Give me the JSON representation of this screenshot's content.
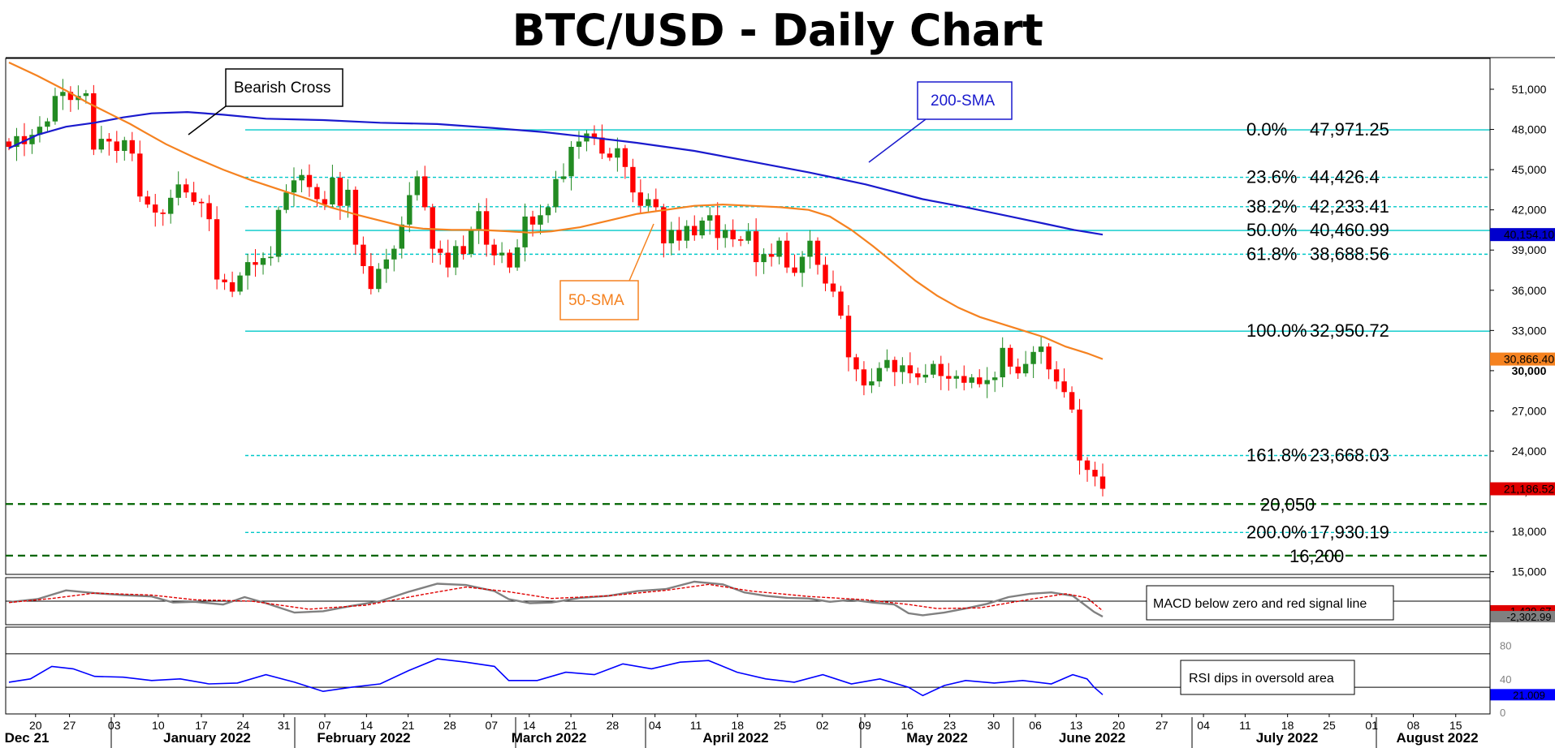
{
  "title": "BTC/USD - Daily Chart",
  "colors": {
    "bull": "#228b22",
    "bear": "#ff0000",
    "sma200": "#1a1acd",
    "sma50": "#f58220",
    "fib": "#00c8c8",
    "support": "#006400",
    "rsi": "#0000ff",
    "macd": "#808080",
    "signal": "#e00000"
  },
  "chart_data": {
    "type": "line",
    "price_axis": {
      "ylim": [
        14800,
        53300
      ],
      "ticks": [
        "51,000",
        "48,000",
        "45,000",
        "42,000",
        "39,000",
        "36,000",
        "33,000",
        "30,000",
        "27,000",
        "24,000",
        "21,000",
        "18,000",
        "15,000"
      ]
    },
    "x_ticks": [
      "20",
      "27",
      "03",
      "10",
      "17",
      "24",
      "31",
      "07",
      "14",
      "21",
      "28",
      "07",
      "14",
      "21",
      "28",
      "04",
      "11",
      "18",
      "25",
      "02",
      "09",
      "16",
      "23",
      "30",
      "06",
      "13",
      "20",
      "27",
      "04",
      "11",
      "18",
      "25",
      "01",
      "08",
      "15"
    ],
    "months": [
      "Dec 21",
      "January 2022",
      "February 2022",
      "March 2022",
      "April 2022",
      "May 2022",
      "June 2022",
      "July 2022",
      "August 2022"
    ],
    "candles_close": [
      46700,
      47500,
      46900,
      47600,
      48200,
      48600,
      50500,
      50800,
      50200,
      50500,
      50700,
      46500,
      47300,
      47100,
      46400,
      47200,
      46200,
      43000,
      42400,
      41800,
      41700,
      42900,
      43900,
      43300,
      42600,
      42500,
      41300,
      36800,
      36600,
      35900,
      37100,
      38100,
      37900,
      38400,
      38500,
      42000,
      43300,
      44200,
      44600,
      43700,
      42800,
      42400,
      44400,
      42300,
      43500,
      39400,
      37800,
      36100,
      37600,
      38300,
      39100,
      40900,
      43100,
      44500,
      42200,
      39100,
      38800,
      37700,
      39300,
      38700,
      40500,
      41900,
      39400,
      38600,
      38800,
      37700,
      39200,
      41500,
      40900,
      41600,
      42200,
      44300,
      44500,
      46700,
      47100,
      47700,
      47400,
      46200,
      45900,
      46600,
      45200,
      43300,
      42300,
      42800,
      42200,
      39500,
      40500,
      39700,
      40800,
      40100,
      41200,
      41600,
      39900,
      40500,
      39800,
      39700,
      40400,
      38100,
      38700,
      38500,
      39700,
      37700,
      37300,
      38500,
      39700,
      37900,
      36500,
      35900,
      34100,
      31000,
      30100,
      28900,
      29200,
      30200,
      30800,
      29900,
      30400,
      29800,
      29500,
      29700,
      30500,
      29600,
      29400,
      29600,
      29100,
      29500,
      29000,
      29300,
      29500,
      31700,
      30300,
      29800,
      30500,
      31400,
      31800,
      30100,
      29200,
      28400,
      27100,
      23300,
      22600,
      22100,
      21186.52
    ],
    "sma200": [
      [
        0,
        46600
      ],
      [
        20,
        47600
      ],
      [
        40,
        48200
      ],
      [
        60,
        48500
      ],
      [
        80,
        48900
      ],
      [
        100,
        49200
      ],
      [
        125,
        49300
      ],
      [
        150,
        49100
      ],
      [
        180,
        48800
      ],
      [
        220,
        48700
      ],
      [
        260,
        48500
      ],
      [
        300,
        48400
      ],
      [
        340,
        48100
      ],
      [
        375,
        47800
      ],
      [
        400,
        47500
      ],
      [
        440,
        47000
      ],
      [
        480,
        46400
      ],
      [
        520,
        45600
      ],
      [
        560,
        44800
      ],
      [
        600,
        43900
      ],
      [
        640,
        42800
      ],
      [
        670,
        42200
      ],
      [
        697,
        41600
      ],
      [
        726,
        40950
      ],
      [
        746,
        40500
      ],
      [
        766,
        40154.1
      ]
    ],
    "sma50": [
      [
        0,
        53000
      ],
      [
        20,
        52000
      ],
      [
        40,
        50900
      ],
      [
        55,
        50000
      ],
      [
        70,
        49200
      ],
      [
        85,
        48400
      ],
      [
        95,
        47800
      ],
      [
        110,
        46900
      ],
      [
        130,
        45900
      ],
      [
        150,
        45000
      ],
      [
        170,
        44200
      ],
      [
        190,
        43500
      ],
      [
        210,
        42800
      ],
      [
        225,
        42200
      ],
      [
        245,
        41600
      ],
      [
        260,
        41200
      ],
      [
        275,
        40800
      ],
      [
        290,
        40600
      ],
      [
        310,
        40500
      ],
      [
        330,
        40500
      ],
      [
        350,
        40400
      ],
      [
        365,
        40300
      ],
      [
        380,
        40400
      ],
      [
        400,
        40700
      ],
      [
        420,
        41200
      ],
      [
        440,
        41700
      ],
      [
        460,
        42000
      ],
      [
        480,
        42300
      ],
      [
        500,
        42400
      ],
      [
        520,
        42300
      ],
      [
        540,
        42200
      ],
      [
        560,
        42000
      ],
      [
        575,
        41500
      ],
      [
        590,
        40500
      ],
      [
        605,
        39300
      ],
      [
        620,
        38000
      ],
      [
        635,
        36700
      ],
      [
        650,
        35600
      ],
      [
        665,
        34700
      ],
      [
        680,
        34000
      ],
      [
        695,
        33500
      ],
      [
        710,
        33000
      ],
      [
        725,
        32500
      ],
      [
        740,
        31800
      ],
      [
        755,
        31300
      ],
      [
        766,
        30866.4
      ]
    ],
    "fib_levels": [
      {
        "pct": "0.0%",
        "value": "47,971.25",
        "price": 47971.25,
        "style": "solid"
      },
      {
        "pct": "23.6%",
        "value": "44,426.4",
        "price": 44426.4,
        "style": "dashed"
      },
      {
        "pct": "38.2%",
        "value": "42,233.41",
        "price": 42233.41,
        "style": "dashed"
      },
      {
        "pct": "50.0%",
        "value": "40,460.99",
        "price": 40460.99,
        "style": "solid"
      },
      {
        "pct": "61.8%",
        "value": "38,688.56",
        "price": 38688.56,
        "style": "dashed"
      },
      {
        "pct": "100.0%",
        "value": "32,950.72",
        "price": 32950.72,
        "style": "solid"
      },
      {
        "pct": "161.8%",
        "value": "23,668.03",
        "price": 23668.03,
        "style": "dashed"
      },
      {
        "pct": "200.0%",
        "value": "17,930.19",
        "price": 17930.19,
        "style": "dashed"
      }
    ],
    "support_levels": [
      {
        "value": "20,050",
        "price": 20050
      },
      {
        "value": "16,200",
        "price": 16200
      }
    ],
    "price_badges": [
      {
        "text": "40,154.10",
        "price": 40154.1,
        "color": "#0000cd"
      },
      {
        "text": "30,866.40",
        "price": 30866.4,
        "color": "#f58220"
      },
      {
        "text": "30,000",
        "price": 30000,
        "color": "#ffffff"
      },
      {
        "text": "21,186.52",
        "price": 21186.52,
        "color": "#e00000"
      }
    ],
    "macd": {
      "ylim": [
        -3500,
        3500
      ],
      "macd_line": [
        [
          0,
          -150
        ],
        [
          20,
          300
        ],
        [
          40,
          1600
        ],
        [
          60,
          1200
        ],
        [
          80,
          900
        ],
        [
          100,
          700
        ],
        [
          115,
          -200
        ],
        [
          130,
          -100
        ],
        [
          150,
          -500
        ],
        [
          165,
          600
        ],
        [
          180,
          -300
        ],
        [
          200,
          -1700
        ],
        [
          220,
          -1500
        ],
        [
          240,
          -700
        ],
        [
          260,
          0
        ],
        [
          280,
          1400
        ],
        [
          300,
          2600
        ],
        [
          320,
          2400
        ],
        [
          340,
          1500
        ],
        [
          350,
          300
        ],
        [
          365,
          -300
        ],
        [
          380,
          -200
        ],
        [
          400,
          500
        ],
        [
          420,
          800
        ],
        [
          440,
          1500
        ],
        [
          460,
          1800
        ],
        [
          480,
          2900
        ],
        [
          500,
          2500
        ],
        [
          515,
          1300
        ],
        [
          530,
          800
        ],
        [
          545,
          500
        ],
        [
          560,
          400
        ],
        [
          575,
          -100
        ],
        [
          590,
          200
        ],
        [
          605,
          -200
        ],
        [
          620,
          -500
        ],
        [
          630,
          -1800
        ],
        [
          640,
          -2100
        ],
        [
          655,
          -1700
        ],
        [
          670,
          -1100
        ],
        [
          685,
          -400
        ],
        [
          700,
          600
        ],
        [
          715,
          1100
        ],
        [
          730,
          1300
        ],
        [
          745,
          800
        ],
        [
          760,
          -1600
        ],
        [
          766,
          -2302.99
        ]
      ],
      "signal_line": [
        [
          0,
          -200
        ],
        [
          30,
          400
        ],
        [
          60,
          1200
        ],
        [
          100,
          900
        ],
        [
          130,
          200
        ],
        [
          170,
          0
        ],
        [
          210,
          -1200
        ],
        [
          250,
          -600
        ],
        [
          290,
          1000
        ],
        [
          320,
          2100
        ],
        [
          350,
          1400
        ],
        [
          380,
          400
        ],
        [
          420,
          800
        ],
        [
          460,
          1600
        ],
        [
          490,
          2500
        ],
        [
          520,
          1500
        ],
        [
          560,
          700
        ],
        [
          600,
          200
        ],
        [
          630,
          -500
        ],
        [
          650,
          -1100
        ],
        [
          680,
          -1000
        ],
        [
          710,
          100
        ],
        [
          740,
          1100
        ],
        [
          755,
          500
        ],
        [
          766,
          -1439.67
        ]
      ],
      "badges": [
        {
          "text": "-1,439.67",
          "value": -1439.67,
          "color": "#e00000"
        },
        {
          "text": "-2,302.99",
          "value": -2302.99,
          "color": "#808080"
        }
      ],
      "annotation": "MACD below zero and red signal line"
    },
    "rsi": {
      "ylim": [
        -2,
        102
      ],
      "ticks": [
        "80",
        "40",
        "0"
      ],
      "levels": [
        70,
        30
      ],
      "line": [
        [
          0,
          36
        ],
        [
          15,
          40
        ],
        [
          30,
          55
        ],
        [
          45,
          52
        ],
        [
          60,
          43
        ],
        [
          80,
          42
        ],
        [
          100,
          38
        ],
        [
          120,
          40
        ],
        [
          140,
          34
        ],
        [
          160,
          35
        ],
        [
          180,
          45
        ],
        [
          200,
          36
        ],
        [
          220,
          25
        ],
        [
          240,
          30
        ],
        [
          260,
          34
        ],
        [
          280,
          50
        ],
        [
          300,
          64
        ],
        [
          320,
          60
        ],
        [
          340,
          55
        ],
        [
          350,
          38
        ],
        [
          370,
          38
        ],
        [
          390,
          48
        ],
        [
          410,
          45
        ],
        [
          430,
          58
        ],
        [
          450,
          52
        ],
        [
          470,
          60
        ],
        [
          490,
          62
        ],
        [
          510,
          48
        ],
        [
          530,
          40
        ],
        [
          550,
          36
        ],
        [
          570,
          45
        ],
        [
          590,
          34
        ],
        [
          610,
          40
        ],
        [
          630,
          30
        ],
        [
          640,
          20
        ],
        [
          655,
          32
        ],
        [
          670,
          38
        ],
        [
          690,
          35
        ],
        [
          710,
          38
        ],
        [
          730,
          34
        ],
        [
          745,
          45
        ],
        [
          755,
          40
        ],
        [
          760,
          30
        ],
        [
          766,
          21.009
        ]
      ],
      "badge": {
        "text": "21.009",
        "value": 21.009
      },
      "annotation": "RSI dips in oversold area"
    },
    "annotations": {
      "bearish_cross": "Bearish Cross",
      "sma200": "200-SMA",
      "sma50": "50-SMA"
    }
  }
}
